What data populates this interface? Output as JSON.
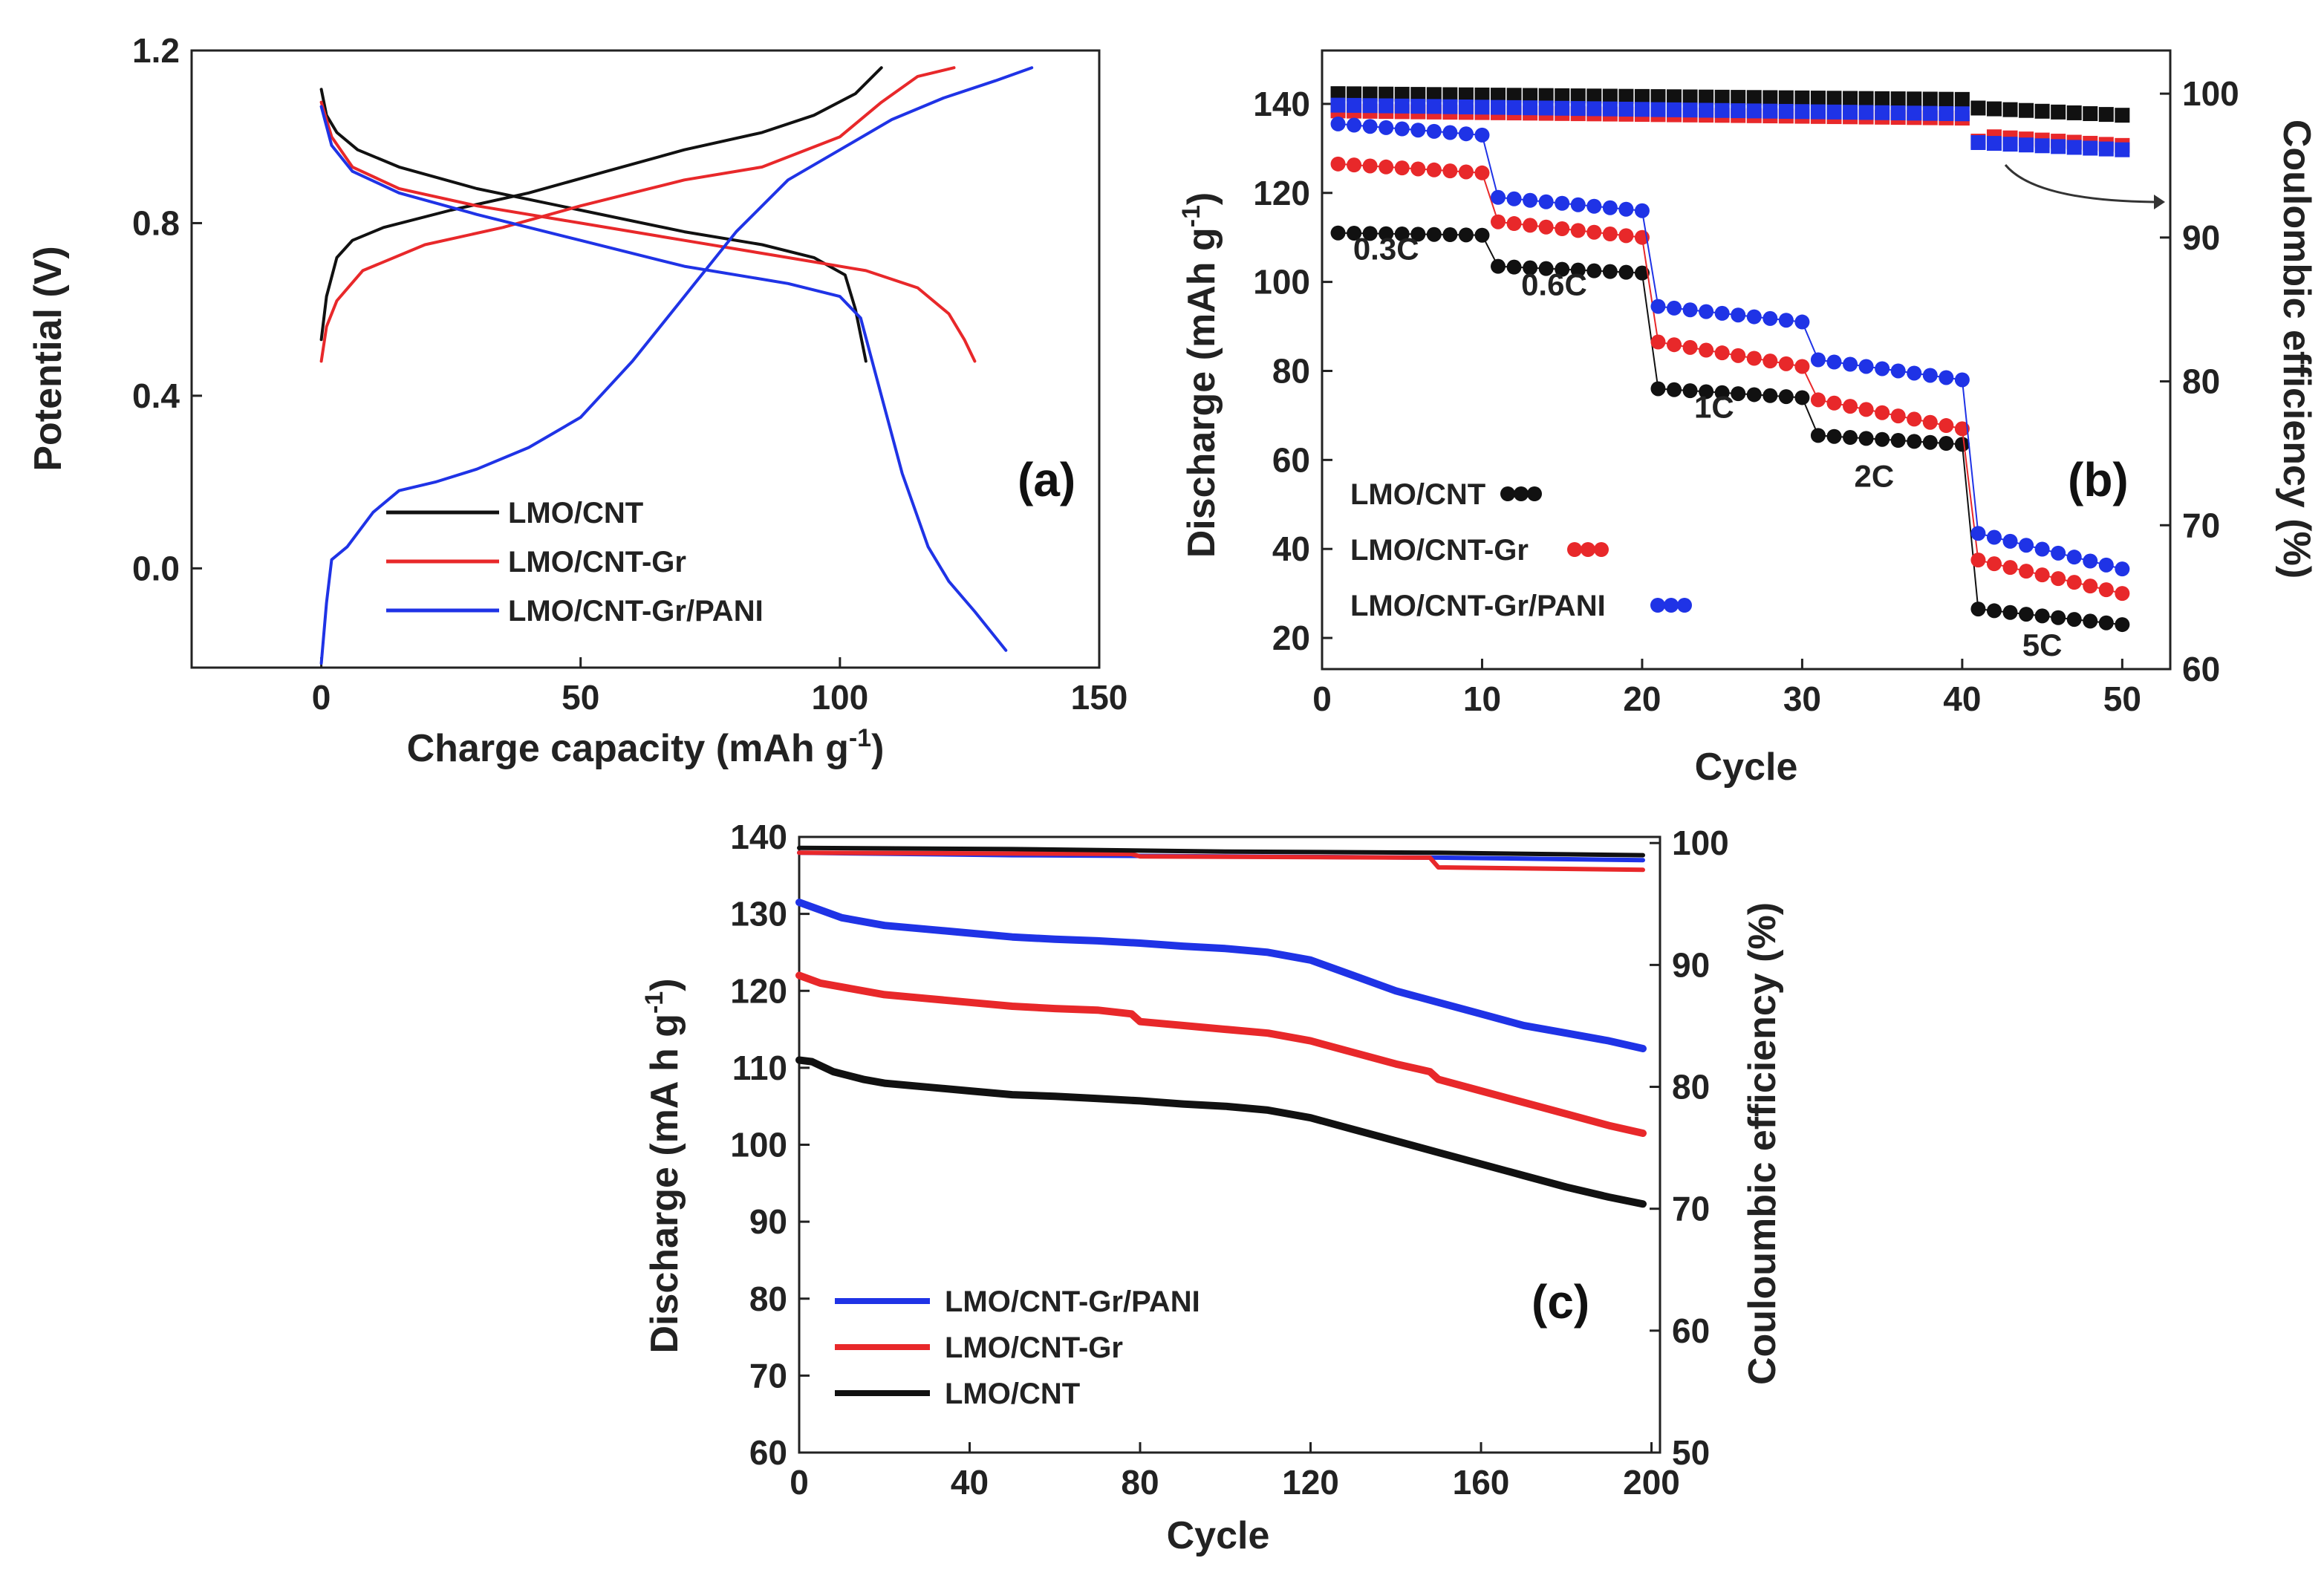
{
  "chart_data": [
    {
      "id": "a",
      "type": "line",
      "panel_label": "(a)",
      "xlabel": "Charge capacity (mAh g",
      "xlabel_sup": "-1",
      "xlabel_end": ")",
      "ylabel": "Potential (V)",
      "xlim": [
        -25,
        150
      ],
      "ylim": [
        -0.23,
        1.2
      ],
      "x_ticks": [
        0,
        50,
        100,
        150
      ],
      "y_ticks": [
        0.0,
        0.4,
        0.8,
        1.2
      ],
      "y_tick_labels": [
        "0.0",
        "0.4",
        "0.8",
        "1.2"
      ],
      "legend": [
        "LMO/CNT",
        "LMO/CNT-Gr",
        "LMO/CNT-Gr/PANI"
      ],
      "series": [
        {
          "name": "LMO/CNT",
          "color": "#111111",
          "curve": "charge",
          "points": [
            [
              0,
              0.53
            ],
            [
              1,
              0.63
            ],
            [
              3,
              0.72
            ],
            [
              6,
              0.76
            ],
            [
              12,
              0.79
            ],
            [
              25,
              0.83
            ],
            [
              40,
              0.87
            ],
            [
              55,
              0.92
            ],
            [
              70,
              0.97
            ],
            [
              85,
              1.01
            ],
            [
              95,
              1.05
            ],
            [
              103,
              1.1
            ],
            [
              108,
              1.16
            ]
          ]
        },
        {
          "name": "LMO/CNT",
          "color": "#111111",
          "curve": "discharge",
          "points": [
            [
              0,
              1.11
            ],
            [
              1,
              1.05
            ],
            [
              3,
              1.01
            ],
            [
              7,
              0.97
            ],
            [
              15,
              0.93
            ],
            [
              30,
              0.88
            ],
            [
              50,
              0.83
            ],
            [
              70,
              0.78
            ],
            [
              85,
              0.75
            ],
            [
              95,
              0.72
            ],
            [
              101,
              0.68
            ],
            [
              103,
              0.6
            ],
            [
              105,
              0.48
            ]
          ]
        },
        {
          "name": "LMO/CNT-Gr",
          "color": "#e8282a",
          "curve": "charge",
          "points": [
            [
              0,
              0.48
            ],
            [
              1,
              0.56
            ],
            [
              3,
              0.62
            ],
            [
              8,
              0.69
            ],
            [
              20,
              0.75
            ],
            [
              35,
              0.79
            ],
            [
              50,
              0.84
            ],
            [
              70,
              0.9
            ],
            [
              85,
              0.93
            ],
            [
              100,
              1.0
            ],
            [
              108,
              1.08
            ],
            [
              115,
              1.14
            ],
            [
              122,
              1.16
            ]
          ]
        },
        {
          "name": "LMO/CNT-Gr",
          "color": "#e8282a",
          "curve": "discharge",
          "points": [
            [
              0,
              1.08
            ],
            [
              2,
              1.0
            ],
            [
              6,
              0.93
            ],
            [
              15,
              0.88
            ],
            [
              30,
              0.84
            ],
            [
              50,
              0.8
            ],
            [
              70,
              0.76
            ],
            [
              90,
              0.72
            ],
            [
              105,
              0.69
            ],
            [
              115,
              0.65
            ],
            [
              121,
              0.59
            ],
            [
              124,
              0.53
            ],
            [
              126,
              0.48
            ]
          ]
        },
        {
          "name": "LMO/CNT-Gr/PANI",
          "color": "#1f33e6",
          "curve": "charge",
          "points": [
            [
              0,
              -0.22
            ],
            [
              1,
              -0.08
            ],
            [
              2,
              0.02
            ],
            [
              5,
              0.05
            ],
            [
              10,
              0.13
            ],
            [
              15,
              0.18
            ],
            [
              22,
              0.2
            ],
            [
              30,
              0.23
            ],
            [
              40,
              0.28
            ],
            [
              50,
              0.35
            ],
            [
              60,
              0.48
            ],
            [
              70,
              0.63
            ],
            [
              80,
              0.78
            ],
            [
              90,
              0.9
            ],
            [
              100,
              0.97
            ],
            [
              110,
              1.04
            ],
            [
              120,
              1.09
            ],
            [
              130,
              1.13
            ],
            [
              137,
              1.16
            ]
          ]
        },
        {
          "name": "LMO/CNT-Gr/PANI",
          "color": "#1f33e6",
          "curve": "discharge",
          "points": [
            [
              0,
              1.07
            ],
            [
              2,
              0.98
            ],
            [
              6,
              0.92
            ],
            [
              15,
              0.87
            ],
            [
              30,
              0.82
            ],
            [
              50,
              0.76
            ],
            [
              70,
              0.7
            ],
            [
              90,
              0.66
            ],
            [
              100,
              0.63
            ],
            [
              104,
              0.58
            ],
            [
              108,
              0.4
            ],
            [
              112,
              0.22
            ],
            [
              117,
              0.05
            ],
            [
              121,
              -0.03
            ],
            [
              126,
              -0.1
            ],
            [
              132,
              -0.19
            ]
          ]
        }
      ]
    },
    {
      "id": "b",
      "type": "scatter",
      "panel_label": "(b)",
      "xlabel": "Cycle",
      "ylabel": "Discharge (mAh g",
      "ylabel_sup": "-1",
      "ylabel_end": ")",
      "y2label": "Coulombic efficiency (%)",
      "xlim": [
        0,
        53
      ],
      "ylim": [
        13,
        152
      ],
      "y2lim": [
        60,
        103
      ],
      "x_ticks": [
        0,
        10,
        20,
        30,
        40,
        50
      ],
      "y_ticks": [
        20,
        40,
        60,
        80,
        100,
        120,
        140
      ],
      "y2_ticks": [
        60,
        70,
        80,
        90,
        100
      ],
      "legend": [
        "LMO/CNT",
        "LMO/CNT-Gr",
        "LMO/CNT-Gr/PANI"
      ],
      "rate_labels": [
        {
          "text": "0.3C",
          "x": 4,
          "y": 105
        },
        {
          "text": "0.6C",
          "x": 14.5,
          "y": 97
        },
        {
          "text": "1C",
          "x": 24.5,
          "y": 69.5
        },
        {
          "text": "2C",
          "x": 34.5,
          "y": 54
        },
        {
          "text": "5C",
          "x": 45,
          "y": 16
        }
      ],
      "series": [
        {
          "name": "LMO/CNT",
          "color": "#111111",
          "discharge_steps": [
            [
              1,
              10,
              111,
              110.5
            ],
            [
              11,
              20,
              103.5,
              102
            ],
            [
              21,
              30,
              76,
              74
            ],
            [
              31,
              40,
              65.5,
              63.5
            ],
            [
              41,
              50,
              26.5,
              23
            ]
          ],
          "efficiency_steps": [
            [
              1,
              40,
              100,
              99.6
            ],
            [
              41,
              50,
              99,
              98.5
            ]
          ]
        },
        {
          "name": "LMO/CNT-Gr",
          "color": "#e8282a",
          "discharge_steps": [
            [
              1,
              10,
              126.5,
              124.5
            ],
            [
              11,
              20,
              113.5,
              110
            ],
            [
              21,
              30,
              86.5,
              81
            ],
            [
              31,
              40,
              73.5,
              67
            ],
            [
              41,
              50,
              37.5,
              30
            ]
          ],
          "efficiency_steps": [
            [
              1,
              40,
              98.8,
              98.3
            ],
            [
              41,
              41,
              96.7,
              96.7
            ],
            [
              42,
              50,
              97,
              96.4
            ]
          ]
        },
        {
          "name": "LMO/CNT-Gr/PANI",
          "color": "#1f33e6",
          "discharge_steps": [
            [
              1,
              10,
              135.5,
              133
            ],
            [
              11,
              20,
              119,
              116
            ],
            [
              21,
              30,
              94.5,
              91
            ],
            [
              31,
              40,
              82.5,
              78
            ],
            [
              41,
              50,
              43.5,
              35.5
            ]
          ],
          "efficiency_steps": [
            [
              1,
              40,
              99.2,
              98.6
            ],
            [
              41,
              50,
              96.6,
              96.1
            ]
          ]
        }
      ]
    },
    {
      "id": "c",
      "type": "line",
      "panel_label": "(c)",
      "xlabel": "Cycle",
      "ylabel": "Discharge (mA h g",
      "ylabel_sup": "-1",
      "ylabel_end": ")",
      "y2label": "Couloumbic efficiency (%)",
      "xlim": [
        0,
        202
      ],
      "ylim": [
        60,
        140
      ],
      "y2lim": [
        50,
        100.5
      ],
      "x_ticks": [
        0,
        40,
        80,
        120,
        160,
        200
      ],
      "y_ticks": [
        60,
        70,
        80,
        90,
        100,
        110,
        120,
        130,
        140
      ],
      "y2_ticks": [
        50,
        60,
        70,
        80,
        90,
        100
      ],
      "legend": [
        "LMO/CNT-Gr/PANI",
        "LMO/CNT-Gr",
        "LMO/CNT"
      ],
      "series": [
        {
          "name": "LMO/CNT-Gr/PANI",
          "color": "#1f33e6",
          "discharge": [
            [
              0,
              131.5
            ],
            [
              5,
              130.5
            ],
            [
              10,
              129.5
            ],
            [
              20,
              128.5
            ],
            [
              30,
              128
            ],
            [
              40,
              127.5
            ],
            [
              50,
              127
            ],
            [
              60,
              126.7
            ],
            [
              70,
              126.5
            ],
            [
              80,
              126.2
            ],
            [
              90,
              125.8
            ],
            [
              100,
              125.5
            ],
            [
              110,
              125
            ],
            [
              120,
              124
            ],
            [
              130,
              122
            ],
            [
              140,
              120
            ],
            [
              150,
              118.5
            ],
            [
              160,
              117
            ],
            [
              170,
              115.5
            ],
            [
              180,
              114.5
            ],
            [
              190,
              113.5
            ],
            [
              198,
              112.5
            ]
          ],
          "efficiency": [
            [
              0,
              99.2
            ],
            [
              50,
              99
            ],
            [
              100,
              98.9
            ],
            [
              150,
              98.8
            ],
            [
              198,
              98.6
            ]
          ]
        },
        {
          "name": "LMO/CNT-Gr",
          "color": "#e8282a",
          "discharge": [
            [
              0,
              122
            ],
            [
              5,
              121
            ],
            [
              10,
              120.5
            ],
            [
              20,
              119.5
            ],
            [
              30,
              119
            ],
            [
              40,
              118.5
            ],
            [
              50,
              118
            ],
            [
              60,
              117.7
            ],
            [
              70,
              117.5
            ],
            [
              78,
              117
            ],
            [
              80,
              116
            ],
            [
              90,
              115.5
            ],
            [
              100,
              115
            ],
            [
              110,
              114.5
            ],
            [
              120,
              113.5
            ],
            [
              130,
              112
            ],
            [
              140,
              110.5
            ],
            [
              148,
              109.5
            ],
            [
              150,
              108.5
            ],
            [
              160,
              107
            ],
            [
              170,
              105.5
            ],
            [
              180,
              104
            ],
            [
              190,
              102.5
            ],
            [
              198,
              101.5
            ]
          ],
          "efficiency": [
            [
              0,
              99.2
            ],
            [
              78,
              99.1
            ],
            [
              80,
              98.9
            ],
            [
              148,
              98.8
            ],
            [
              150,
              98
            ],
            [
              198,
              97.8
            ]
          ]
        },
        {
          "name": "LMO/CNT",
          "color": "#111111",
          "discharge": [
            [
              0,
              111
            ],
            [
              3,
              110.8
            ],
            [
              8,
              109.5
            ],
            [
              15,
              108.5
            ],
            [
              20,
              108
            ],
            [
              30,
              107.5
            ],
            [
              40,
              107
            ],
            [
              50,
              106.5
            ],
            [
              60,
              106.3
            ],
            [
              70,
              106
            ],
            [
              80,
              105.7
            ],
            [
              90,
              105.3
            ],
            [
              100,
              105
            ],
            [
              110,
              104.5
            ],
            [
              120,
              103.5
            ],
            [
              130,
              102
            ],
            [
              140,
              100.5
            ],
            [
              150,
              99
            ],
            [
              160,
              97.5
            ],
            [
              170,
              96
            ],
            [
              180,
              94.5
            ],
            [
              190,
              93.2
            ],
            [
              198,
              92.3
            ]
          ],
          "efficiency": [
            [
              0,
              99.6
            ],
            [
              50,
              99.5
            ],
            [
              100,
              99.3
            ],
            [
              150,
              99.2
            ],
            [
              198,
              99
            ]
          ]
        }
      ]
    }
  ]
}
